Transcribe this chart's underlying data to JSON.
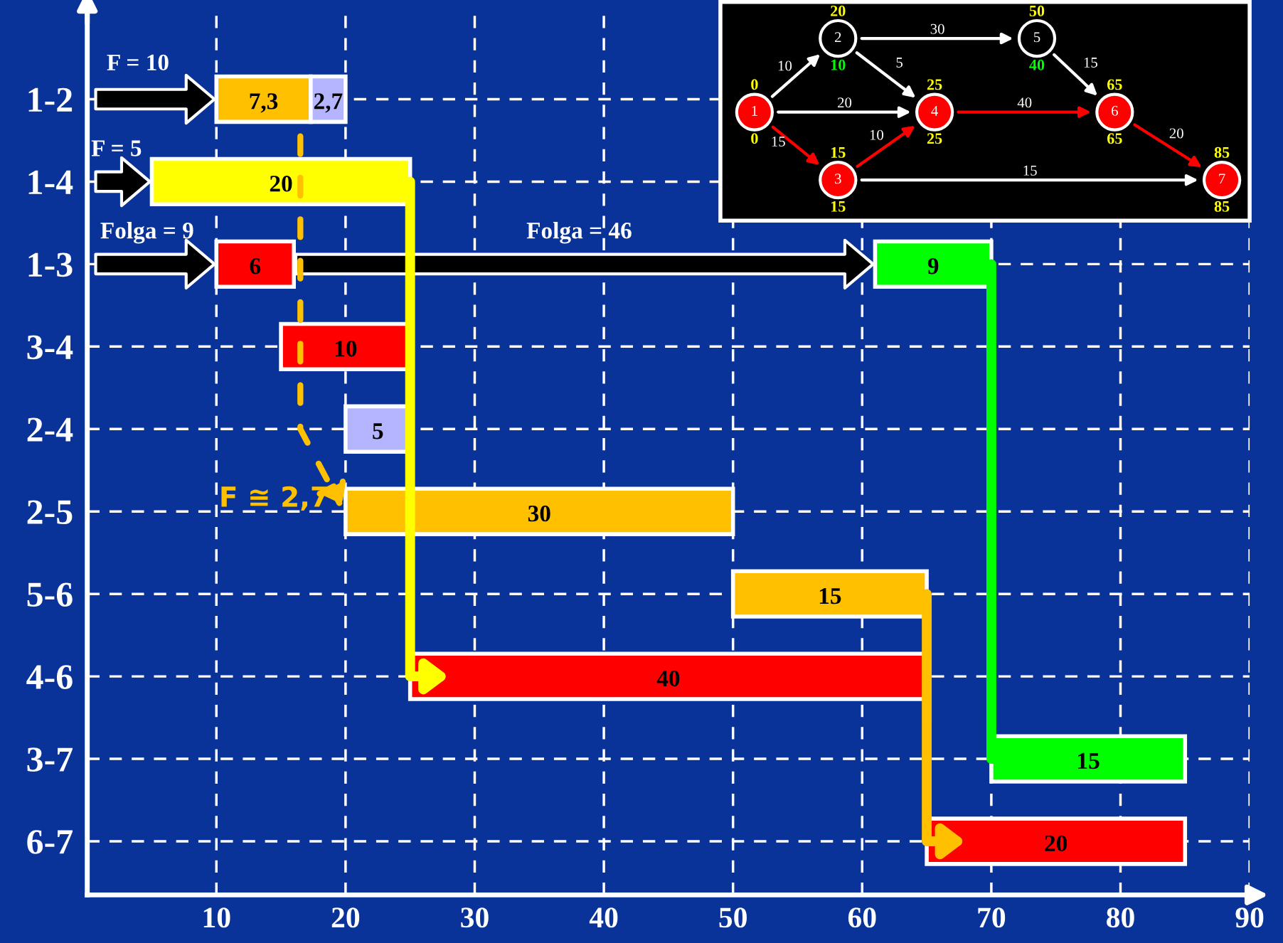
{
  "chart_data": [
    {
      "type": "bar",
      "orientation": "horizontal",
      "categories": [
        "1-2",
        "1-4",
        "1-3",
        "3-4",
        "2-4",
        "2-5",
        "5-6",
        "4-6",
        "3-7",
        "6-7"
      ],
      "series": [
        {
          "base": [
            10,
            5,
            10,
            15,
            20,
            20,
            50,
            25,
            70,
            65
          ],
          "values": [
            7.3,
            20,
            6,
            10,
            5,
            30,
            15,
            40,
            15,
            20
          ],
          "colors": [
            "#ffc000",
            "#ffff00",
            "#ff0000",
            "#ff0000",
            "#b4b4ff",
            "#ffc000",
            "#ffc000",
            "#ff0000",
            "#00ff00",
            "#ff0000"
          ],
          "value_labels": [
            "7,3",
            "20",
            "6",
            "10",
            "5",
            "30",
            "15",
            "40",
            "15",
            "20"
          ]
        },
        {
          "base": [
            17.3,
            null,
            61,
            null,
            null,
            null,
            null,
            null,
            null,
            null
          ],
          "values": [
            2.7,
            null,
            9,
            null,
            null,
            null,
            null,
            null,
            null,
            null
          ],
          "colors": [
            "#b4b4ff",
            null,
            "#00ff00",
            null,
            null,
            null,
            null,
            null,
            null,
            null
          ],
          "value_labels": [
            "2,7",
            null,
            "9",
            null,
            null,
            null,
            null,
            null,
            null,
            null
          ]
        }
      ],
      "xlim": [
        0,
        90
      ],
      "xticks": [
        10,
        20,
        30,
        40,
        50,
        60,
        70,
        80,
        90
      ],
      "grid": true,
      "line_style": "dashed",
      "annotations": [
        "F = 10",
        "F = 5",
        "Folga = 9",
        "Folga = 46",
        "F ≅ 2,7"
      ]
    },
    {
      "type": "other",
      "categories": [
        "1",
        "2",
        "3",
        "4",
        "5",
        "6",
        "7"
      ],
      "colors": [
        "#ff0000",
        "#000000",
        "#ff0000",
        "#ff0000",
        "#000000",
        "#ff0000",
        "#ff0000"
      ],
      "series": [
        {
          "values": [
            0,
            20,
            15,
            25,
            50,
            65,
            85
          ],
          "value_labels": [
            "0",
            "20",
            "15",
            "25",
            "50",
            "65",
            "85"
          ]
        },
        {
          "values": [
            0,
            10,
            15,
            25,
            40,
            65,
            85
          ],
          "value_labels": [
            "0",
            "10",
            "15",
            "25",
            "40",
            "65",
            "85"
          ]
        }
      ],
      "annotations": [
        "10",
        "30",
        "5",
        "20",
        "15",
        "10",
        "40",
        "15",
        "20",
        "15"
      ]
    }
  ]
}
